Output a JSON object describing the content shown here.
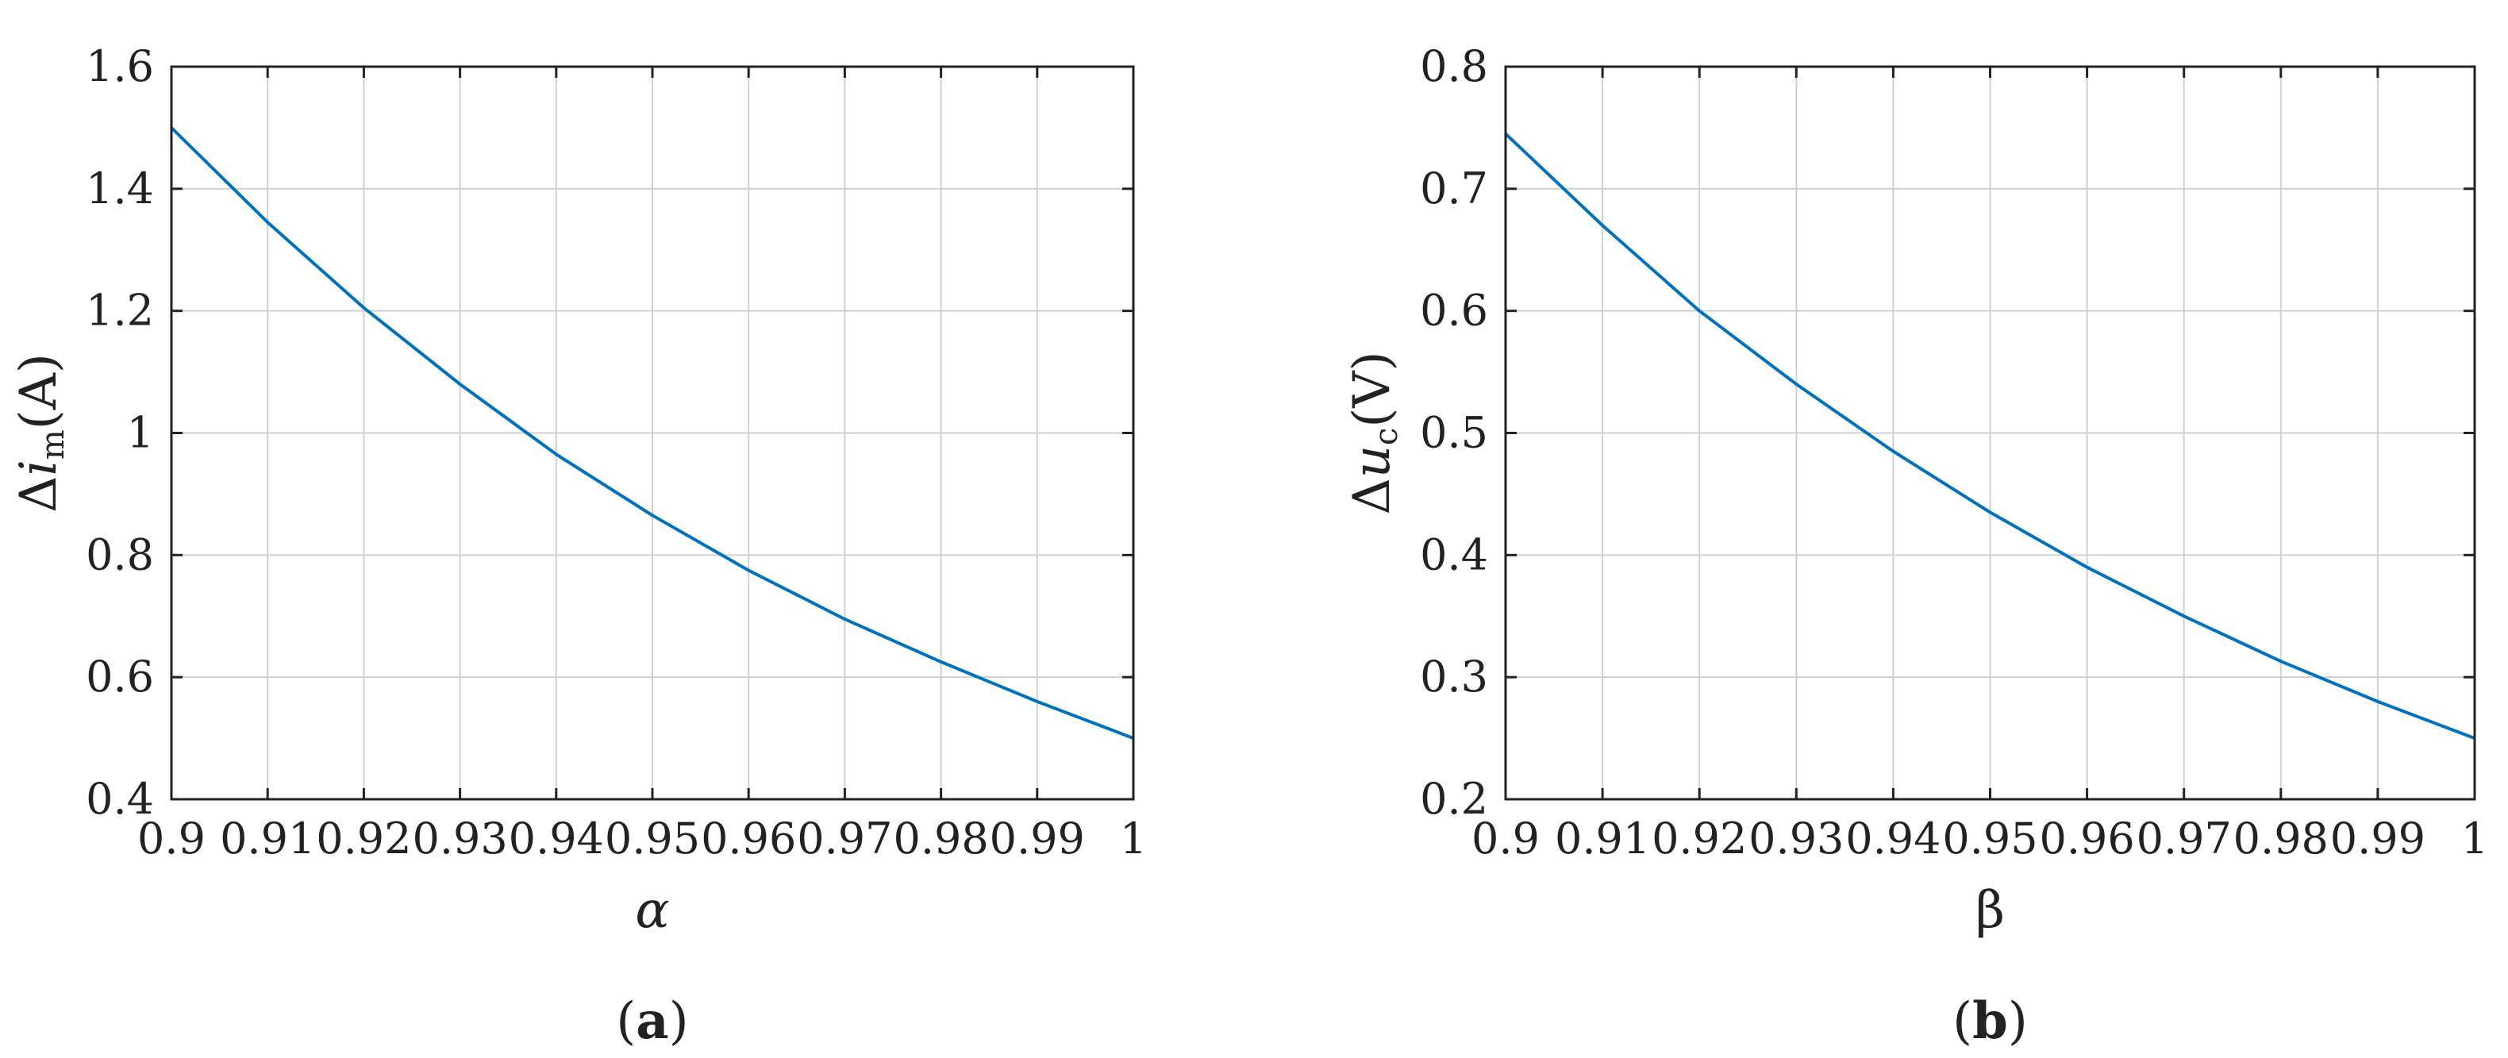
{
  "chart_data": [
    {
      "type": "line",
      "caption_letter": "a",
      "xlabel": "α",
      "ylabel": {
        "prefix": "Δ",
        "var": "i",
        "sub": "m",
        "unit": "(A)"
      },
      "xlim": [
        0.9,
        1
      ],
      "ylim": [
        0.4,
        1.6
      ],
      "xticks": [
        0.9,
        0.91,
        0.92,
        0.93,
        0.94,
        0.95,
        0.96,
        0.97,
        0.98,
        0.99,
        1
      ],
      "xtick_labels": [
        "0.9",
        "0.91",
        "0.92",
        "0.93",
        "0.94",
        "0.95",
        "0.96",
        "0.97",
        "0.98",
        "0.99",
        "1"
      ],
      "yticks": [
        0.4,
        0.6,
        0.8,
        1.0,
        1.2,
        1.4,
        1.6
      ],
      "ytick_labels": [
        "0.4",
        "0.6",
        "0.8",
        "1",
        "1.2",
        "1.4",
        "1.6"
      ],
      "grid": true,
      "series": [
        {
          "color": "#0072BD",
          "x": [
            0.9,
            0.91,
            0.92,
            0.93,
            0.94,
            0.95,
            0.96,
            0.97,
            0.98,
            0.99,
            1.0
          ],
          "y": [
            1.5,
            1.345,
            1.205,
            1.08,
            0.965,
            0.865,
            0.775,
            0.695,
            0.625,
            0.56,
            0.5
          ]
        }
      ]
    },
    {
      "type": "line",
      "caption_letter": "b",
      "xlabel": "β",
      "ylabel": {
        "prefix": "Δ",
        "var": "u",
        "sub": "c",
        "unit": "(V)"
      },
      "xlim": [
        0.9,
        1
      ],
      "ylim": [
        0.2,
        0.8
      ],
      "xticks": [
        0.9,
        0.91,
        0.92,
        0.93,
        0.94,
        0.95,
        0.96,
        0.97,
        0.98,
        0.99,
        1
      ],
      "xtick_labels": [
        "0.9",
        "0.91",
        "0.92",
        "0.93",
        "0.94",
        "0.95",
        "0.96",
        "0.97",
        "0.98",
        "0.99",
        "1"
      ],
      "yticks": [
        0.2,
        0.3,
        0.4,
        0.5,
        0.6,
        0.7,
        0.8
      ],
      "ytick_labels": [
        "0.2",
        "0.3",
        "0.4",
        "0.5",
        "0.6",
        "0.7",
        "0.8"
      ],
      "grid": true,
      "series": [
        {
          "color": "#0072BD",
          "x": [
            0.9,
            0.91,
            0.92,
            0.93,
            0.94,
            0.95,
            0.96,
            0.97,
            0.98,
            0.99,
            1.0
          ],
          "y": [
            0.745,
            0.67,
            0.6,
            0.54,
            0.485,
            0.435,
            0.39,
            0.35,
            0.313,
            0.28,
            0.25
          ]
        }
      ]
    }
  ]
}
